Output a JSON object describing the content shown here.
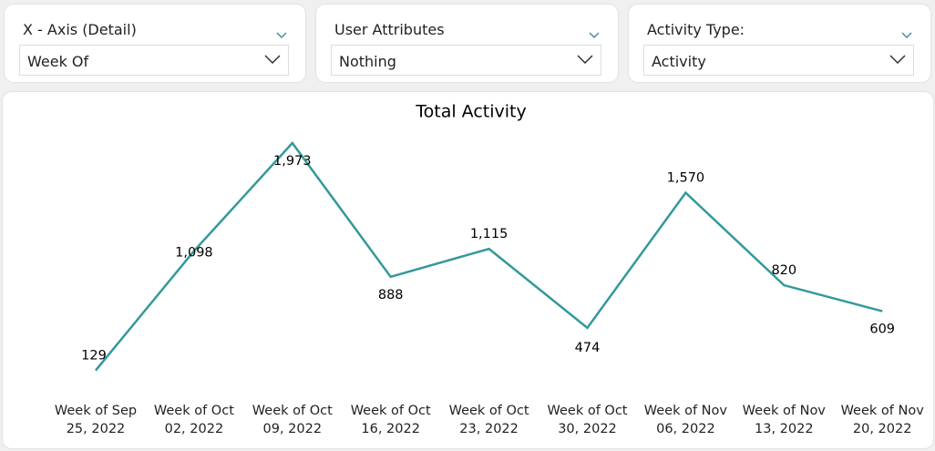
{
  "slicers": [
    {
      "title": "X - Axis (Detail)",
      "value": "Week Of"
    },
    {
      "title": "User Attributes",
      "value": "Nothing"
    },
    {
      "title": "Activity Type:",
      "value": "Activity"
    }
  ],
  "chart_data": {
    "type": "line",
    "title": "Total Activity",
    "categories": [
      "Week of Sep 25, 2022",
      "Week of Oct 02, 2022",
      "Week of Oct 09, 2022",
      "Week of Oct 16, 2022",
      "Week of Oct 23, 2022",
      "Week of Oct 30, 2022",
      "Week of Nov 06, 2022",
      "Week of Nov 13, 2022",
      "Week of Nov 20, 2022"
    ],
    "values": [
      129,
      1098,
      1973,
      888,
      1115,
      474,
      1570,
      820,
      609
    ],
    "value_labels": [
      "129",
      "1,098",
      "1,973",
      "888",
      "1,115",
      "474",
      "1,570",
      "820",
      "609"
    ],
    "color": "#33999a"
  }
}
